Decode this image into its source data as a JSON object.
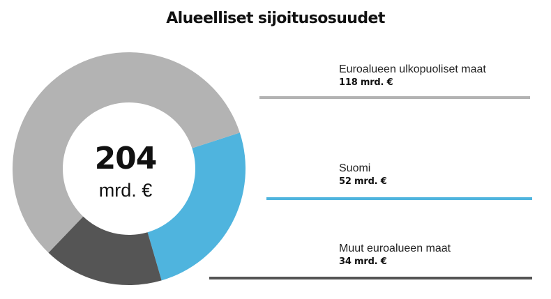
{
  "title": "Alueelliset sijoitusosuudet",
  "center": {
    "total": "204",
    "unit": "mrd. €"
  },
  "colors": {
    "outside": "#b3b3b3",
    "finland": "#4fb4de",
    "other_euro": "#555555"
  },
  "chart_data": {
    "type": "pie",
    "title": "Alueelliset sijoitusosuudet",
    "total": 204,
    "unit": "mrd. €",
    "donut": true,
    "series": [
      {
        "name": "Euroalueen ulkopuoliset maat",
        "value": 118,
        "label": "118 mrd. €",
        "color": "#b3b3b3"
      },
      {
        "name": "Suomi",
        "value": 52,
        "label": "52 mrd. €",
        "color": "#4fb4de"
      },
      {
        "name": "Muut euroalueen maat",
        "value": 34,
        "label": "34 mrd. €",
        "color": "#555555"
      }
    ]
  }
}
